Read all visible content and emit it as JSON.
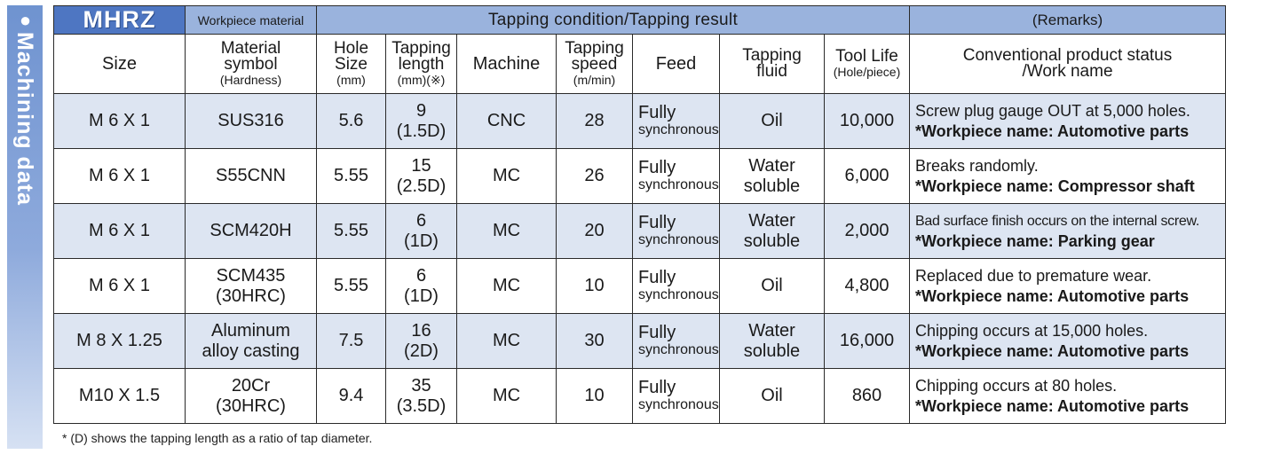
{
  "side_tab": {
    "dot": "●",
    "label": "Machining data"
  },
  "header": {
    "brand": "MHRZ",
    "workpiece_material": "Workpiece material",
    "tapping_condition": "Tapping condition/Tapping result",
    "remarks": "(Remarks)"
  },
  "columns": {
    "size": "Size",
    "material_symbol": [
      "Material",
      "symbol"
    ],
    "hardness": "(Hardness)",
    "hole_size": [
      "Hole",
      "Size"
    ],
    "hole_unit": "(mm)",
    "tapping_length": [
      "Tapping",
      "length"
    ],
    "tapping_length_unit": "(mm)(※)",
    "machine": "Machine",
    "tapping_speed": [
      "Tapping",
      "speed"
    ],
    "speed_unit": "(m/min)",
    "feed": "Feed",
    "fluid": [
      "Tapping",
      "fluid"
    ],
    "tool_life": "Tool Life",
    "tool_life_unit": "(Hole/piece)",
    "remarks": [
      "Conventional product status",
      "/Work name"
    ]
  },
  "rows": [
    {
      "size": "M 6 X 1",
      "material": [
        "SUS316"
      ],
      "hole": "5.6",
      "length": [
        "9",
        "(1.5D)"
      ],
      "machine": "CNC",
      "speed": "28",
      "feed": [
        "Fully",
        "synchronous"
      ],
      "fluid": [
        "Oil"
      ],
      "life": "10,000",
      "status": "Screw plug gauge OUT at 5,000 holes.",
      "work": "*Workpiece name: Automotive parts"
    },
    {
      "size": "M 6 X 1",
      "material": [
        "S55CNN"
      ],
      "hole": "5.55",
      "length": [
        "15",
        "(2.5D)"
      ],
      "machine": "MC",
      "speed": "26",
      "feed": [
        "Fully",
        "synchronous"
      ],
      "fluid": [
        "Water",
        "soluble"
      ],
      "life": "6,000",
      "status": "Breaks randomly.",
      "work": "*Workpiece name: Compressor shaft"
    },
    {
      "size": "M 6 X 1",
      "material": [
        "SCM420H"
      ],
      "hole": "5.55",
      "length": [
        "6",
        "(1D)"
      ],
      "machine": "MC",
      "speed": "20",
      "feed": [
        "Fully",
        "synchronous"
      ],
      "fluid": [
        "Water",
        "soluble"
      ],
      "life": "2,000",
      "status": "Bad surface finish occurs on the internal screw.",
      "work": "*Workpiece name: Parking gear"
    },
    {
      "size": "M 6 X 1",
      "material": [
        "SCM435",
        "(30HRC)"
      ],
      "hole": "5.55",
      "length": [
        "6",
        "(1D)"
      ],
      "machine": "MC",
      "speed": "10",
      "feed": [
        "Fully",
        "synchronous"
      ],
      "fluid": [
        "Oil"
      ],
      "life": "4,800",
      "status": "Replaced due to premature wear.",
      "work": "*Workpiece name: Automotive parts"
    },
    {
      "size": "M 8 X 1.25",
      "material": [
        "Aluminum",
        "alloy casting"
      ],
      "hole": "7.5",
      "length": [
        "16",
        "(2D)"
      ],
      "machine": "MC",
      "speed": "30",
      "feed": [
        "Fully",
        "synchronous"
      ],
      "fluid": [
        "Water",
        "soluble"
      ],
      "life": "16,000",
      "status": "Chipping occurs at 15,000 holes.",
      "work": "*Workpiece name: Automotive parts"
    },
    {
      "size": "M10 X 1.5",
      "material": [
        "20Cr",
        "(30HRC)"
      ],
      "hole": "9.4",
      "length": [
        "35",
        "(3.5D)"
      ],
      "machine": "MC",
      "speed": "10",
      "feed": [
        "Fully",
        "synchronous"
      ],
      "fluid": [
        "Oil"
      ],
      "life": "860",
      "status": "Chipping occurs at 80 holes.",
      "work": "*Workpiece name: Automotive parts"
    }
  ],
  "footnote": "* (D) shows the tapping length as a ratio of tap diameter.",
  "colors": {
    "brand_blue": "#4e76c2",
    "header_band": "#9ab3dd",
    "row_shade": "#dde5f2"
  }
}
